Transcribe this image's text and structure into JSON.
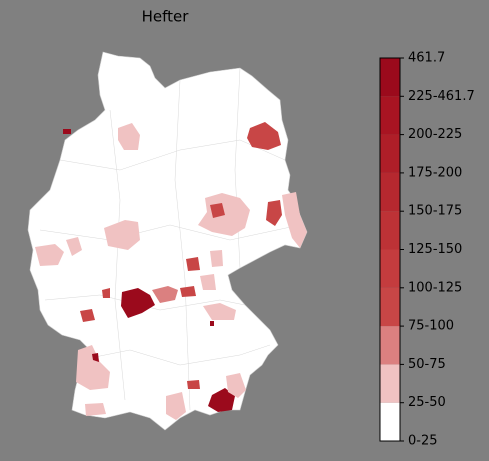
{
  "title": "Hefter",
  "colorbar": {
    "labels": [
      "0-25",
      "25-50",
      "50-75",
      "75-100",
      "100-125",
      "125-150",
      "150-175",
      "175-200",
      "200-225",
      "225-461.7",
      "461.7"
    ],
    "colors": [
      "#ffffff",
      "#f0c2c2",
      "#db8080",
      "#c84646",
      "#c43c3e",
      "#bd3236",
      "#b6282f",
      "#af1e28",
      "#a81422",
      "#9b0a1c"
    ]
  }
}
